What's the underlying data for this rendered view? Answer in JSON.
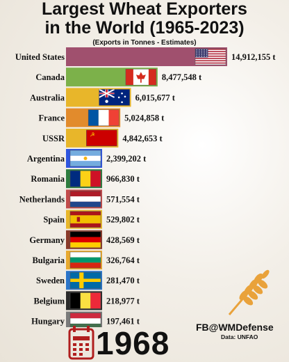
{
  "title_line1": "Largest Wheat Exporters",
  "title_line2": "in the World (1965-2023)",
  "subtitle": "(Exports in Tonnes - Estimates)",
  "credit": "FB@WMDefense",
  "source": "Data: UNFAO",
  "year": "1968",
  "chart_data": {
    "type": "bar",
    "orientation": "horizontal",
    "title": "Largest Wheat Exporters in the World (1965-2023)",
    "subtitle": "(Exports in Tonnes - Estimates)",
    "categories": [
      "United States",
      "Canada",
      "Australia",
      "France",
      "USSR",
      "Argentina",
      "Romania",
      "Netherlands",
      "Spain",
      "Germany",
      "Bulgaria",
      "Sweden",
      "Belgium",
      "Hungary"
    ],
    "values": [
      14912155,
      8477548,
      6015677,
      5024858,
      4842653,
      2399202,
      966830,
      571554,
      529802,
      428569,
      326764,
      281470,
      218977,
      197461
    ],
    "value_labels": [
      "14,912,155 t",
      "8,477,548 t",
      "6,015,677 t",
      "5,024,858 t",
      "4,842,653 t",
      "2,399,202 t",
      "966,830 t",
      "571,554 t",
      "529,802 t",
      "428,569 t",
      "326,764 t",
      "281,470 t",
      "218,977 t",
      "197,461 t"
    ],
    "colors": [
      "#a0506e",
      "#7cb14a",
      "#e8b62a",
      "#e28b2c",
      "#e8b62a",
      "#2d55e0",
      "#2e7d3f",
      "#c24b4b",
      "#e8b62a",
      "#8a3a2a",
      "#e8a930",
      "#2a74c9",
      "#2a2a2a",
      "#7a7a7a"
    ],
    "flags": [
      "us-flag",
      "canada-flag",
      "australia-flag",
      "france-flag",
      "ussr-flag",
      "argentina-flag",
      "romania-flag",
      "netherlands-flag",
      "spain-flag",
      "germany-flag",
      "bulgaria-flag",
      "sweden-flag",
      "belgium-flag",
      "hungary-flag"
    ],
    "grid": false,
    "legend": "none"
  }
}
